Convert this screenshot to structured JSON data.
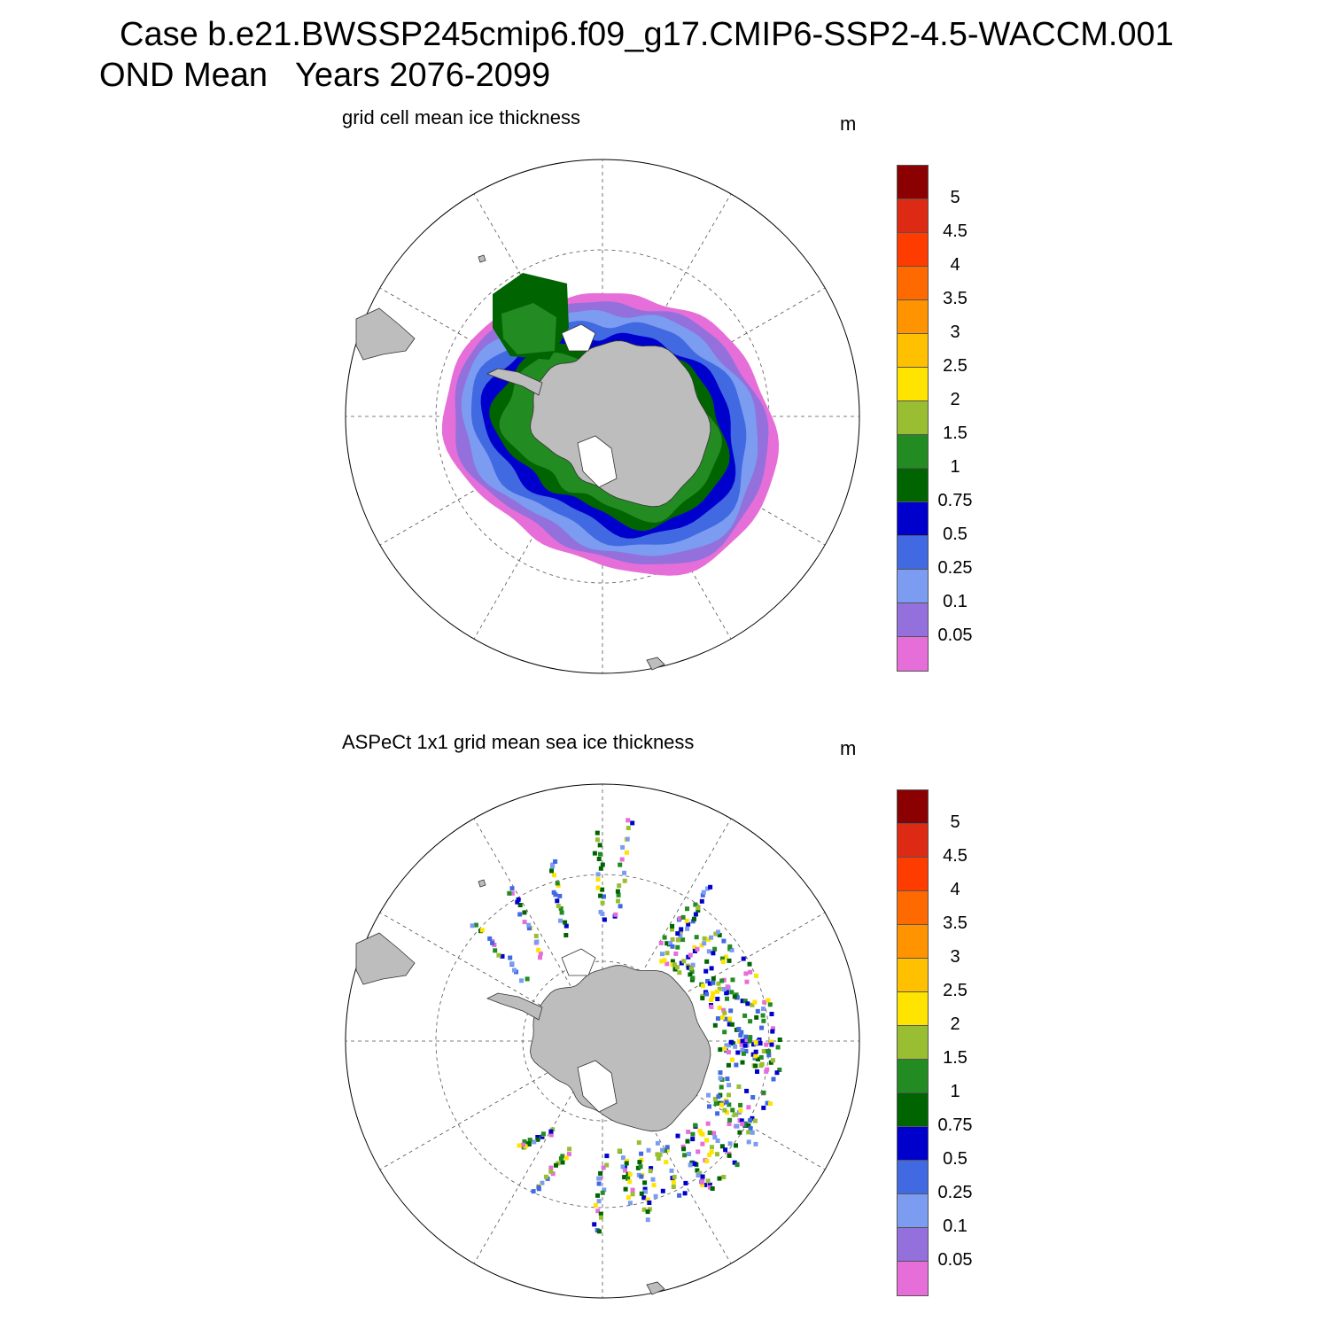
{
  "title_line1": "Case b.e21.BWSSP245cmip6.f09_g17.CMIP6-SSP2-4.5-WACCM.001",
  "title_line2": "OND Mean   Years 2076-2099",
  "chart_data": [
    {
      "type": "heatmap",
      "title": "grid cell mean ice thickness",
      "unit": "m",
      "projection": "south-polar-stereographic",
      "colorbar": {
        "levels": [
          "5",
          "4.5",
          "4",
          "3.5",
          "3",
          "2.5",
          "2",
          "1.5",
          "1",
          "0.75",
          "0.5",
          "0.25",
          "0.1",
          "0.05"
        ],
        "colors": [
          "#8b0000",
          "#dc2a14",
          "#ff3c00",
          "#ff6a00",
          "#ff9400",
          "#ffc000",
          "#ffe400",
          "#9abe32",
          "#228b22",
          "#006400",
          "#0000cd",
          "#4169e1",
          "#7b9cf0",
          "#9370db",
          "#e66ed8"
        ]
      }
    },
    {
      "type": "heatmap",
      "title": "ASPeCt 1x1 grid mean sea ice thickness",
      "unit": "m",
      "projection": "south-polar-stereographic",
      "colorbar": {
        "levels": [
          "5",
          "4.5",
          "4",
          "3.5",
          "3",
          "2.5",
          "2",
          "1.5",
          "1",
          "0.75",
          "0.5",
          "0.25",
          "0.1",
          "0.05"
        ],
        "colors": [
          "#8b0000",
          "#dc2a14",
          "#ff3c00",
          "#ff6a00",
          "#ff9400",
          "#ffc000",
          "#ffe400",
          "#9abe32",
          "#228b22",
          "#006400",
          "#0000cd",
          "#4169e1",
          "#7b9cf0",
          "#9370db",
          "#e66ed8"
        ]
      }
    }
  ]
}
